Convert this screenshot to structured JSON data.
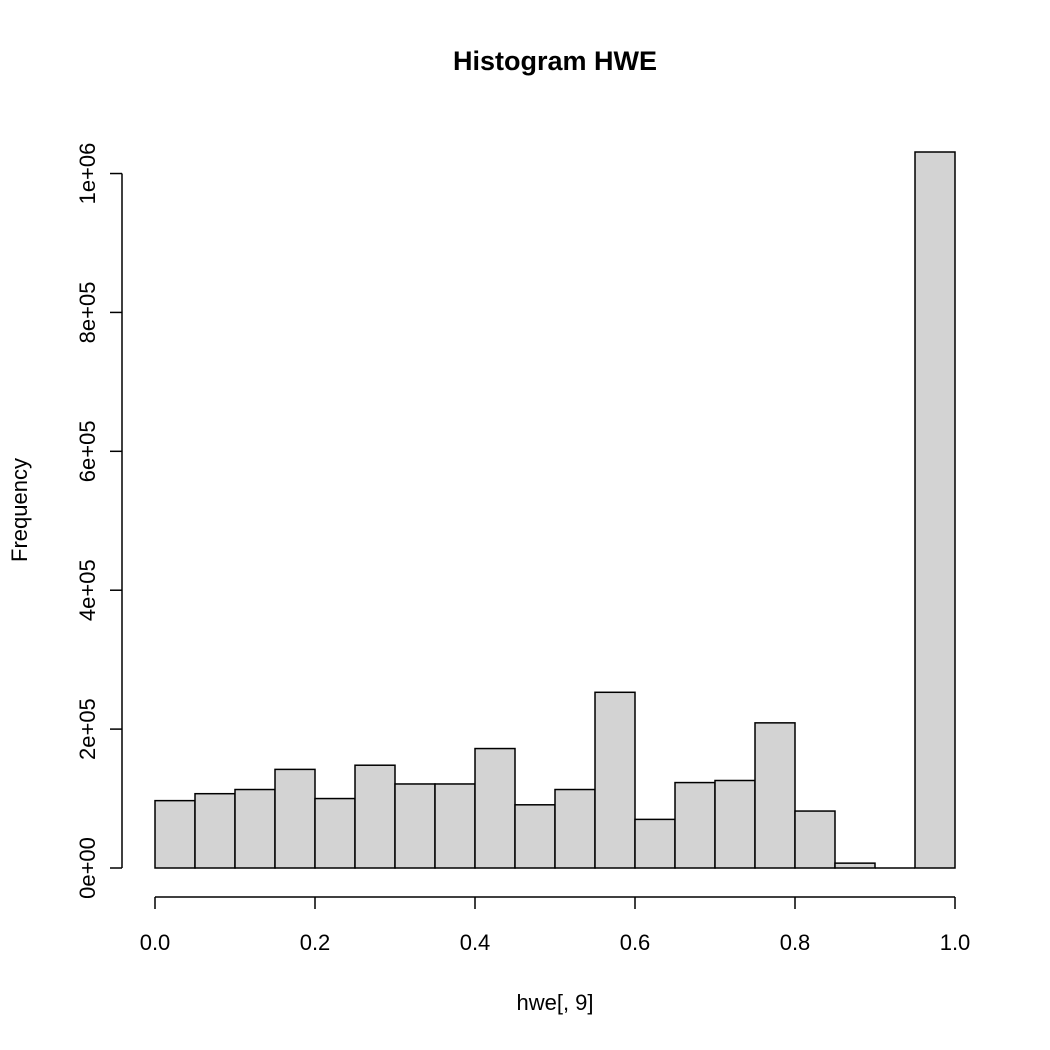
{
  "chart_data": {
    "type": "bar",
    "title": "Histogram HWE",
    "xlabel": "hwe[, 9]",
    "ylabel": "Frequency",
    "bin_edges": [
      0.0,
      0.05,
      0.1,
      0.15,
      0.2,
      0.25,
      0.3,
      0.35,
      0.4,
      0.45,
      0.5,
      0.55,
      0.6,
      0.65,
      0.7,
      0.75,
      0.8,
      0.85,
      0.9,
      0.95,
      1.0
    ],
    "values": [
      97000,
      107000,
      113000,
      142000,
      100000,
      148000,
      121000,
      121000,
      172000,
      91000,
      113000,
      253000,
      70000,
      123000,
      126000,
      209000,
      82000,
      7000,
      0,
      1031000
    ],
    "xlim": [
      0,
      1
    ],
    "ylim": [
      0,
      1031000
    ],
    "x_ticks": [
      0.0,
      0.2,
      0.4,
      0.6,
      0.8,
      1.0
    ],
    "x_tick_labels": [
      "0.0",
      "0.2",
      "0.4",
      "0.6",
      "0.8",
      "1.0"
    ],
    "y_ticks": [
      0,
      200000,
      400000,
      600000,
      800000,
      1000000
    ],
    "y_tick_labels": [
      "0e+00",
      "2e+05",
      "4e+05",
      "6e+05",
      "8e+05",
      "1e+06"
    ],
    "bar_color": "#d3d3d3",
    "edge_color": "#000000",
    "grid": false
  }
}
